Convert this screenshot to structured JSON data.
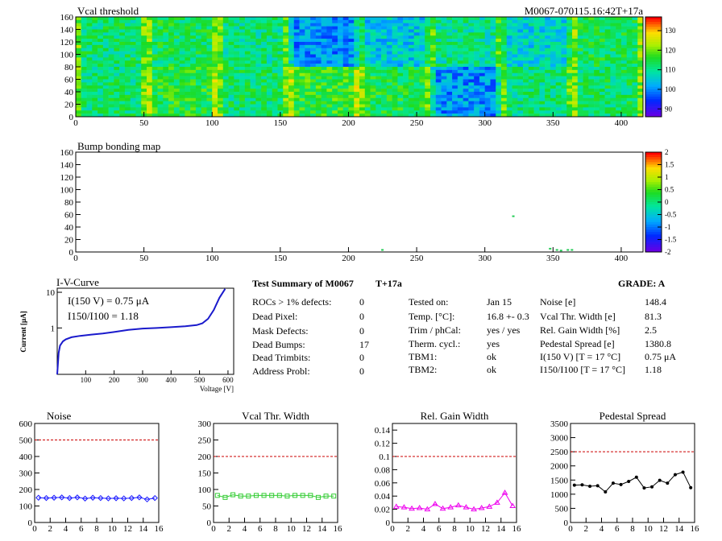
{
  "chart_data": [
    {
      "type": "heatmap",
      "title": "Vcal threshold",
      "subtitle": "M0067-070115.16:42T+17a",
      "xlim": [
        0,
        416
      ],
      "ylim": [
        0,
        160
      ],
      "xticks": [
        0,
        50,
        100,
        150,
        200,
        250,
        300,
        350,
        400
      ],
      "yticks": [
        0,
        20,
        40,
        60,
        80,
        100,
        120,
        140,
        160
      ],
      "colorbar": {
        "range": [
          86,
          137
        ],
        "ticks": [
          90,
          100,
          110,
          120,
          130
        ]
      },
      "roc_means_top": [
        112,
        113,
        111,
        100,
        105,
        110,
        106,
        113
      ],
      "roc_means_bottom": [
        112,
        115,
        112,
        116,
        114,
        100,
        111,
        112
      ]
    },
    {
      "type": "heatmap",
      "title": "Bump bonding map",
      "xlim": [
        0,
        416
      ],
      "ylim": [
        0,
        160
      ],
      "xticks": [
        0,
        50,
        100,
        150,
        200,
        250,
        300,
        350,
        400
      ],
      "yticks": [
        0,
        20,
        40,
        60,
        80,
        100,
        120,
        140,
        160
      ],
      "colorbar": {
        "range": [
          -2,
          2
        ],
        "ticks": [
          2,
          1.5,
          1,
          0.5,
          0,
          -0.5,
          -1,
          -1.5,
          -2
        ]
      },
      "points": [
        [
          320,
          56
        ],
        [
          224,
          2
        ],
        [
          347,
          4
        ],
        [
          352,
          2
        ],
        [
          355,
          1
        ],
        [
          360,
          2
        ],
        [
          363,
          2
        ]
      ]
    },
    {
      "type": "line",
      "title": "I-V-Curve",
      "xlabel": "Voltage [V]",
      "ylabel": "Current [μA]",
      "xlim": [
        0,
        620
      ],
      "ylim": [
        0.05,
        13
      ],
      "yscale": "log",
      "xticks": [
        100,
        200,
        300,
        400,
        500,
        600
      ],
      "yticks": [
        1,
        10
      ],
      "annotations": [
        "I(150 V) = 0.75 μA",
        "I150/I100 = 1.18"
      ],
      "x": [
        0,
        5,
        10,
        20,
        30,
        50,
        80,
        120,
        160,
        200,
        250,
        300,
        350,
        400,
        450,
        490,
        510,
        530,
        550,
        570,
        590
      ],
      "y": [
        0.05,
        0.2,
        0.32,
        0.42,
        0.48,
        0.55,
        0.6,
        0.65,
        0.7,
        0.77,
        0.88,
        0.96,
        1.0,
        1.05,
        1.12,
        1.2,
        1.35,
        1.8,
        3.2,
        7.0,
        12.5
      ]
    },
    {
      "type": "line",
      "title": "Noise",
      "xlim": [
        0,
        16
      ],
      "ylim": [
        0,
        600
      ],
      "threshold": 500,
      "xticks": [
        0,
        2,
        4,
        6,
        8,
        10,
        12,
        14,
        16
      ],
      "yticks": [
        0,
        100,
        200,
        300,
        400,
        500,
        600
      ],
      "color": "#1a1aff",
      "x": [
        0,
        1,
        2,
        3,
        4,
        5,
        6,
        7,
        8,
        9,
        10,
        11,
        12,
        13,
        14,
        15
      ],
      "y": [
        150,
        148,
        150,
        152,
        148,
        152,
        145,
        150,
        148,
        146,
        147,
        146,
        148,
        152,
        140,
        148
      ]
    },
    {
      "type": "line",
      "title": "Vcal Thr. Width",
      "xlim": [
        0,
        16
      ],
      "ylim": [
        0,
        300
      ],
      "threshold": 200,
      "xticks": [
        0,
        2,
        4,
        6,
        8,
        10,
        12,
        14,
        16
      ],
      "yticks": [
        0,
        50,
        100,
        150,
        200,
        250,
        300
      ],
      "color": "#33cc33",
      "x": [
        0,
        1,
        2,
        3,
        4,
        5,
        6,
        7,
        8,
        9,
        10,
        11,
        12,
        13,
        14,
        15
      ],
      "y": [
        82,
        76,
        84,
        80,
        80,
        82,
        82,
        82,
        82,
        80,
        82,
        82,
        82,
        76,
        80,
        80
      ]
    },
    {
      "type": "line",
      "title": "Rel. Gain Width",
      "xlim": [
        0,
        16
      ],
      "ylim": [
        0,
        0.15
      ],
      "threshold": 0.1,
      "xticks": [
        0,
        2,
        4,
        6,
        8,
        10,
        12,
        14,
        16
      ],
      "yticks": [
        0,
        0.02,
        0.04,
        0.06,
        0.08,
        0.1,
        0.12,
        0.14
      ],
      "color": "#ee00ee",
      "x": [
        0,
        1,
        2,
        3,
        4,
        5,
        6,
        7,
        8,
        9,
        10,
        11,
        12,
        13,
        14,
        15
      ],
      "y": [
        0.024,
        0.023,
        0.021,
        0.022,
        0.02,
        0.028,
        0.021,
        0.023,
        0.026,
        0.023,
        0.02,
        0.022,
        0.024,
        0.03,
        0.045,
        0.025
      ]
    },
    {
      "type": "line",
      "title": "Pedestal Spread",
      "xlim": [
        0,
        16
      ],
      "ylim": [
        0,
        3500
      ],
      "threshold": 2500,
      "xticks": [
        0,
        2,
        4,
        6,
        8,
        10,
        12,
        14,
        16
      ],
      "yticks": [
        0,
        500,
        1000,
        1500,
        2000,
        2500,
        3000,
        3500
      ],
      "color": "#000000",
      "x": [
        0,
        1,
        2,
        3,
        4,
        5,
        6,
        7,
        8,
        9,
        10,
        11,
        12,
        13,
        14,
        15
      ],
      "y": [
        1320,
        1330,
        1280,
        1300,
        1080,
        1390,
        1340,
        1450,
        1600,
        1220,
        1260,
        1490,
        1390,
        1690,
        1780,
        1230
      ]
    }
  ],
  "summary": {
    "title": "Test Summary of M0067",
    "temp_tag": "T+17a",
    "grade": "GRADE:  A",
    "col1": [
      {
        "label": "ROCs > 1% defects:",
        "value": "0"
      },
      {
        "label": "Dead Pixel:",
        "value": "0"
      },
      {
        "label": "Mask Defects:",
        "value": "0"
      },
      {
        "label": "Dead Bumps:",
        "value": "17"
      },
      {
        "label": "Dead Trimbits:",
        "value": "0"
      },
      {
        "label": "Address Probl:",
        "value": "0"
      }
    ],
    "col2": [
      {
        "label": "Tested on:",
        "value": "Jan 15"
      },
      {
        "label": "Temp. [°C]:",
        "value": "16.8 +- 0.3"
      },
      {
        "label": "Trim / phCal:",
        "value": "yes / yes"
      },
      {
        "label": "Therm. cycl.:",
        "value": "yes"
      },
      {
        "label": "TBM1:",
        "value": "ok"
      },
      {
        "label": "TBM2:",
        "value": "ok"
      }
    ],
    "col3": [
      {
        "label": "Noise [e]",
        "value": "148.4"
      },
      {
        "label": "Vcal Thr. Width [e]",
        "value": "81.3"
      },
      {
        "label": "Rel. Gain Width [%]",
        "value": "2.5"
      },
      {
        "label": "Pedestal Spread [e]",
        "value": "1380.8"
      },
      {
        "label": "I(150 V) [T = 17 °C]",
        "value": "0.75 μA"
      },
      {
        "label": "I150/I100  [T = 17 °C]",
        "value": "1.18"
      }
    ]
  }
}
